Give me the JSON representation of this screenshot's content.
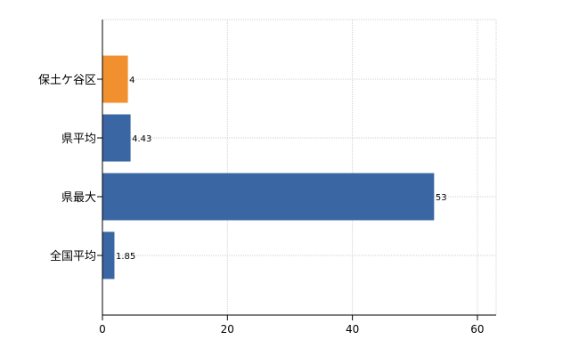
{
  "chart_data": {
    "type": "bar",
    "orientation": "horizontal",
    "categories": [
      "保土ケ谷区",
      "県平均",
      "県最大",
      "全国平均"
    ],
    "values": [
      4,
      4.43,
      53,
      1.85
    ],
    "value_labels": [
      "4",
      "4.43",
      "53",
      "1.85"
    ],
    "colors": [
      "#f0902e",
      "#3a67a4",
      "#3a67a4",
      "#3a67a4"
    ],
    "xlim": [
      0,
      63
    ],
    "x_ticks": [
      0,
      20,
      40,
      60
    ],
    "x_tick_labels": [
      "0",
      "20",
      "40",
      "60"
    ],
    "grid": true,
    "title": "",
    "xlabel": "",
    "ylabel": ""
  }
}
